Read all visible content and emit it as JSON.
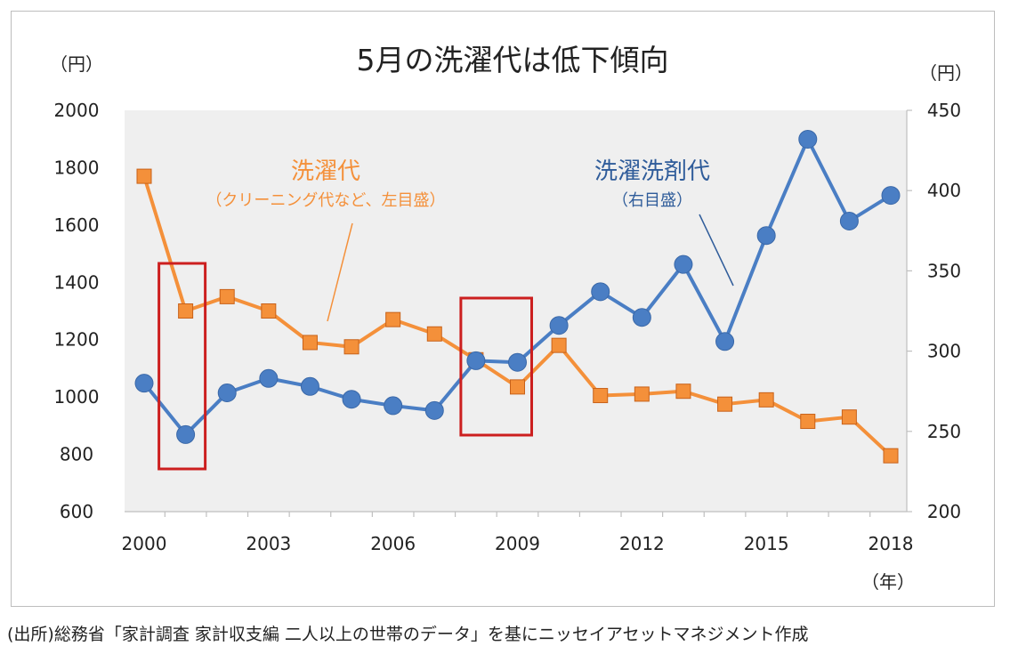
{
  "chart_data": {
    "type": "line",
    "title": "5月の洗濯代は低下傾向",
    "x": [
      "2000",
      "2001",
      "2002",
      "2003",
      "2004",
      "2005",
      "2006",
      "2007",
      "2008",
      "2009",
      "2010",
      "2011",
      "2012",
      "2013",
      "2014",
      "2015",
      "2016",
      "2017",
      "2018"
    ],
    "x_tick_labels": [
      "2000",
      "2003",
      "2006",
      "2009",
      "2012",
      "2015",
      "2018"
    ],
    "x_unit": "（年）",
    "left_unit": "（円）",
    "right_unit": "（円）",
    "left_ylim": [
      600,
      2000
    ],
    "left_ticks": [
      "600",
      "800",
      "1000",
      "1200",
      "1400",
      "1600",
      "1800",
      "2000"
    ],
    "right_ylim": [
      200,
      450
    ],
    "right_ticks": [
      "200",
      "250",
      "300",
      "350",
      "400",
      "450"
    ],
    "series": [
      {
        "name": "洗濯代",
        "label_line1": "洗濯代",
        "label_line2": "（クリーニング代など、左目盛）",
        "axis": "left",
        "color": "#f4903a",
        "marker": "square",
        "values": [
          1770,
          1300,
          1350,
          1300,
          1190,
          1175,
          1270,
          1220,
          1130,
          1035,
          1180,
          1005,
          1010,
          1020,
          975,
          990,
          915,
          930,
          795
        ]
      },
      {
        "name": "洗濯洗剤代",
        "label_line1": "洗濯洗剤代",
        "label_line2": "（右目盛）",
        "axis": "right",
        "color": "#4a7ec4",
        "marker": "circle",
        "values": [
          280,
          248,
          274,
          283,
          278,
          270,
          266,
          263,
          294,
          293,
          316,
          337,
          321,
          354,
          306,
          372,
          432,
          381,
          397
        ]
      }
    ],
    "highlight_boxes": [
      {
        "x_from": "2001",
        "x_to": "2001"
      },
      {
        "x_from": "2008",
        "x_to": "2009"
      }
    ],
    "highlight_color": "#cc1f1f",
    "plot_background": "#efefef"
  },
  "source_note": "(出所)総務省「家計調査 家計収支編 二人以上の世帯のデータ」を基にニッセイアセットマネジメント作成"
}
